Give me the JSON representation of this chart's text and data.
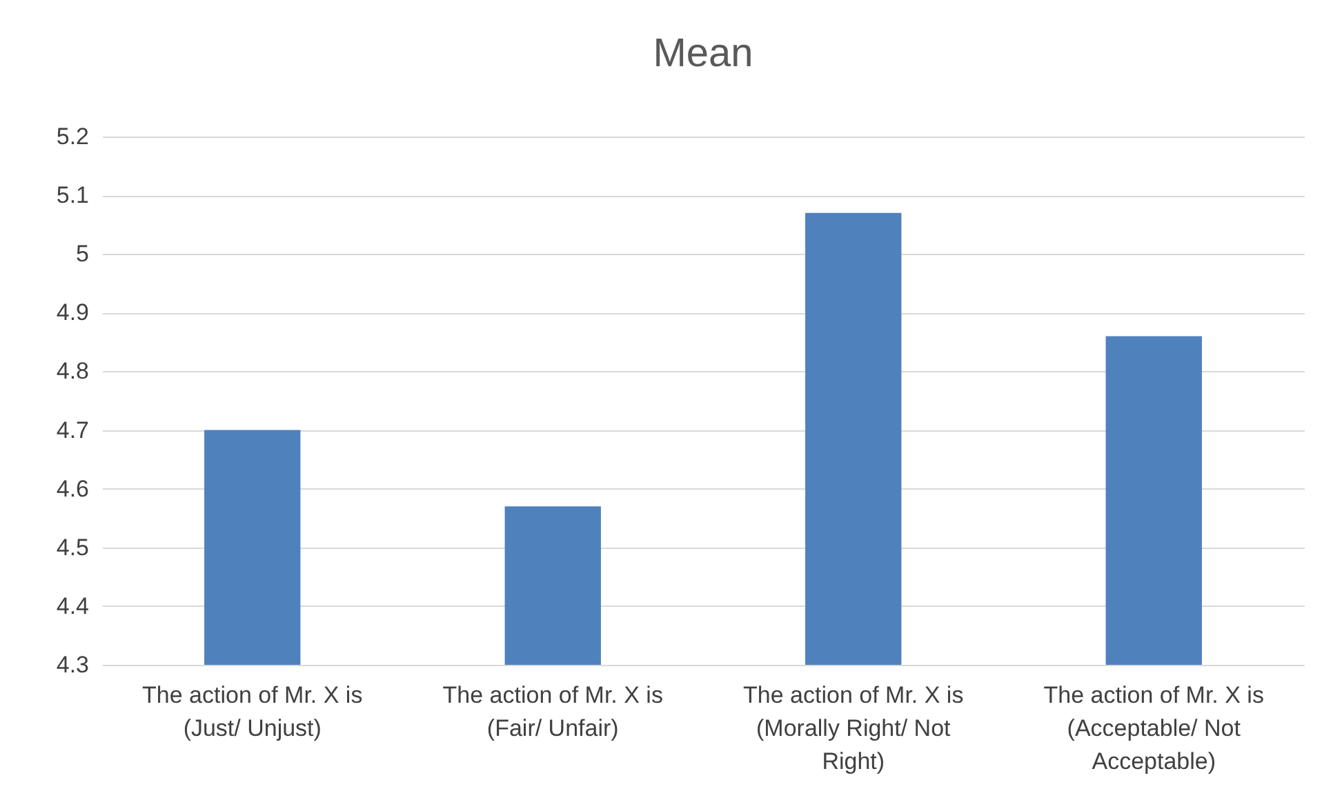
{
  "chart_data": {
    "type": "bar",
    "title": "Mean",
    "categories": [
      "The action of Mr. X is\n(Just/ Unjust)",
      "The action of Mr. X is\n(Fair/ Unfair)",
      "The action of Mr. X is\n(Morally Right/ Not\nRight)",
      "The action of Mr. X is\n(Acceptable/ Not\nAcceptable)"
    ],
    "values": [
      4.7,
      4.57,
      5.07,
      4.86
    ],
    "color": "#4f81bd",
    "ylim": [
      4.3,
      5.2
    ],
    "yticks": [
      4.3,
      4.4,
      4.5,
      4.6,
      4.7,
      4.8,
      4.9,
      5,
      5.1,
      5.2
    ],
    "grid": "y",
    "legend": false
  }
}
